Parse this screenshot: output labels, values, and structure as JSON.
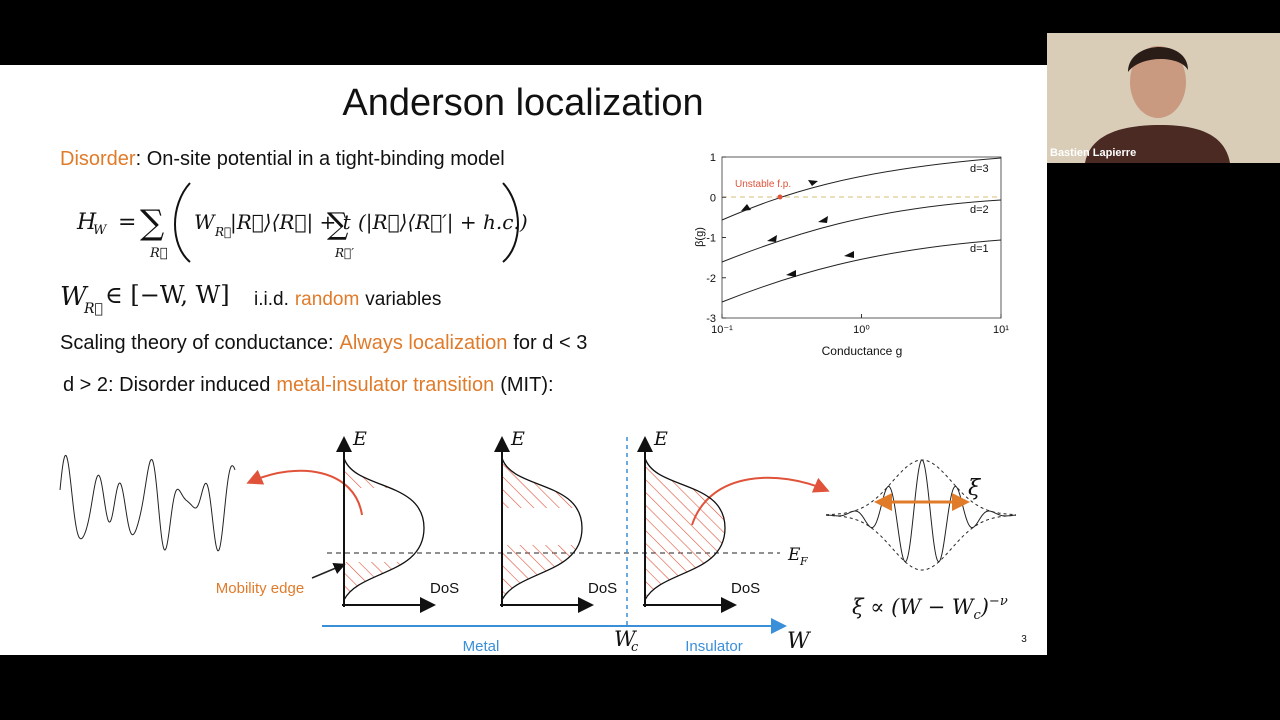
{
  "slide": {
    "title": "Anderson localization",
    "disorder_line": {
      "highlight": "Disorder",
      "rest": ": On-site potential in a tight-binding model"
    },
    "hamiltonian": {
      "lhs": "H",
      "lhs_sub": "W",
      "equals": "=",
      "sum": "∑",
      "sum_sub": "R⃗",
      "w": "W",
      "w_sub": "R⃗",
      "term": "|R⃗⟩⟨R⃗| + t",
      "sum2": "∑",
      "sum2_sub": "R⃗′",
      "hopping": "(|R⃗⟩⟨R⃗′| + h.c.)"
    },
    "random_line": {
      "symbol": "W",
      "symbol_sub": "R⃗",
      "interval": "∈ [−W, W]",
      "prefix": "i.i.d.",
      "highlight": "random",
      "suffix": "variables"
    },
    "scaling_line": {
      "prefix": "Scaling theory of conductance:",
      "highlight": "Always localization",
      "suffix": "for d < 3"
    },
    "mit_line": {
      "prefix": "d > 2: Disorder induced",
      "highlight": "metal-insulator transition",
      "suffix": "(MIT):"
    },
    "page_number": "3"
  },
  "beta_plot": {
    "ylabel": "β(g)",
    "xlabel": "Conductance g",
    "ylim": [
      -3,
      1
    ],
    "yticks": [
      1,
      0,
      -1,
      -2,
      -3
    ],
    "xlim": [
      0.1,
      10
    ],
    "xticks": [
      {
        "value": 0.1,
        "label": "10⁻¹"
      },
      {
        "value": 1,
        "label": "10⁰"
      },
      {
        "value": 10,
        "label": "10¹"
      }
    ],
    "xscale": "log",
    "annotation": "Unstable f.p.",
    "curve_labels": [
      "d=3",
      "d=2",
      "d=1"
    ]
  },
  "diagram": {
    "energy_labels": [
      "E",
      "E",
      "E"
    ],
    "dos_labels": [
      "DoS",
      "DoS",
      "DoS"
    ],
    "fermi": {
      "symbol": "E",
      "sub": "F"
    },
    "mobility_edge": "Mobility edge",
    "metal": "Metal",
    "insulator": "Insulator",
    "critical": {
      "symbol": "W",
      "sub": "c"
    },
    "axis": "W",
    "xi": "ξ",
    "scaling": {
      "lhs": "ξ ∝ (W − W",
      "sub": "c",
      "close": ")",
      "sup": "−ν"
    }
  },
  "webcam": {
    "name": "Bastien Lapierre"
  }
}
